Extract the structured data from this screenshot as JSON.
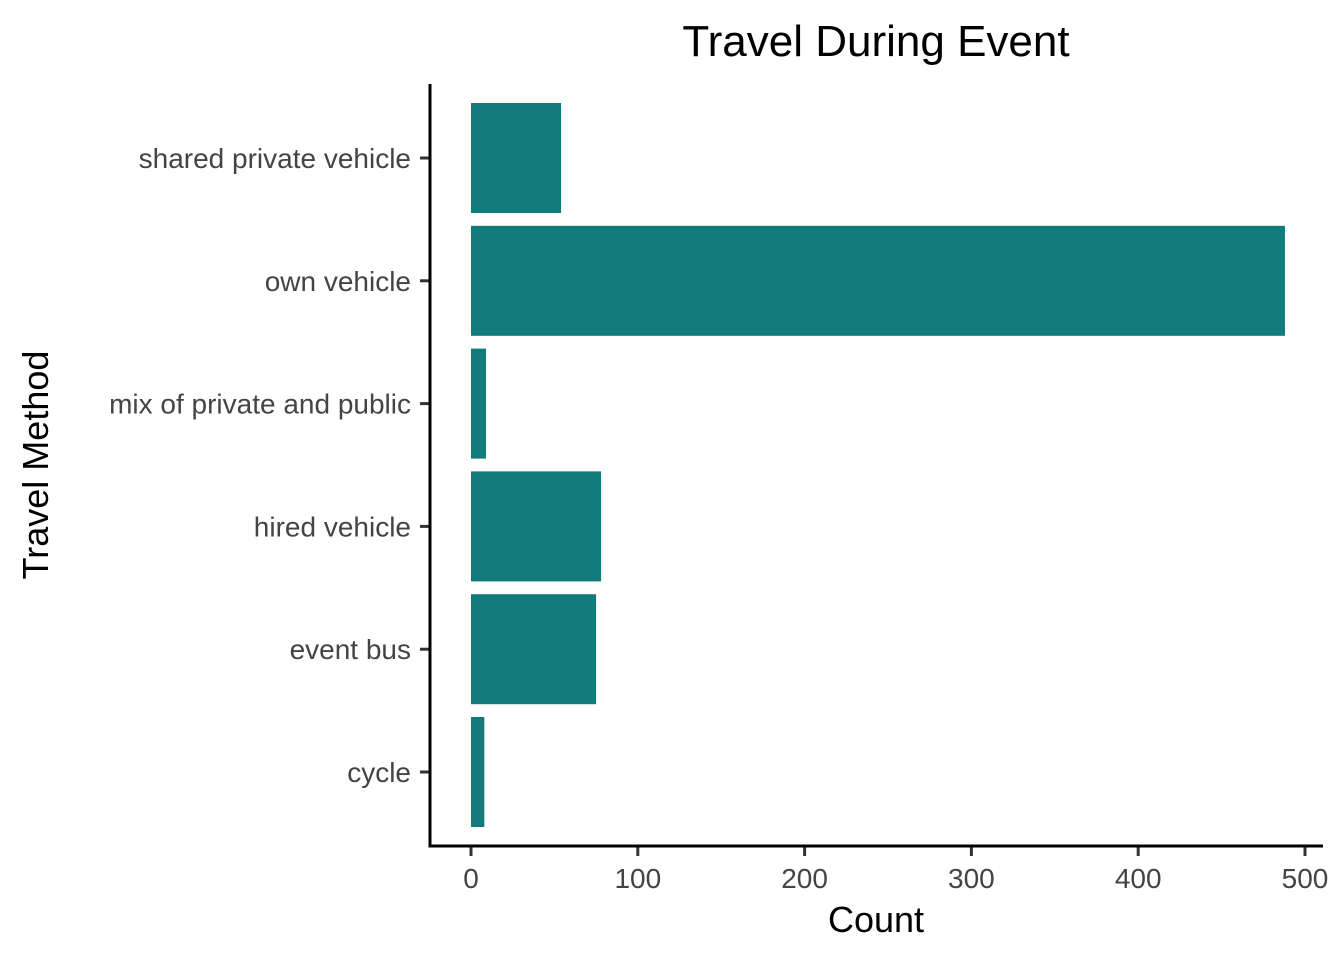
{
  "chart_data": {
    "type": "bar",
    "orientation": "horizontal",
    "title": "Travel During Event",
    "xlabel": "Count",
    "ylabel": "Travel Method",
    "categories": [
      "cycle",
      "event bus",
      "hired vehicle",
      "mix of private and public",
      "own vehicle",
      "shared private vehicle"
    ],
    "values": [
      8,
      75,
      78,
      9,
      488,
      54
    ],
    "xlim": [
      -24,
      512
    ],
    "x_ticks": [
      0,
      100,
      200,
      300,
      400,
      500
    ],
    "x_tick_labels": [
      "0",
      "100",
      "200",
      "300",
      "400",
      "500"
    ],
    "grid": false,
    "legend": "none",
    "bar_color": "#127C7A"
  }
}
